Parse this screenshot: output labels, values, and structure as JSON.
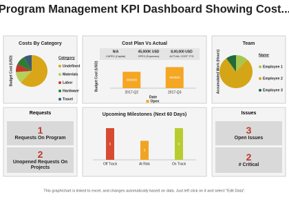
{
  "title": "Program Management KPI Dashboard Showing Cost...",
  "chart_data": [
    {
      "type": "pie",
      "title": "Costs By Category",
      "y_label": "Budget Cost (USD)",
      "legend_title": "Category",
      "categories": [
        "Undefined",
        "Materials",
        "Labor",
        "Hardware",
        "Travel"
      ],
      "values": [
        62,
        12,
        8,
        10,
        8
      ],
      "colors": [
        "#d9a61a",
        "#b5cf5a",
        "#c0392b",
        "#2e7d32",
        "#3b5a78"
      ]
    },
    {
      "type": "bar",
      "title": "Cost Plan Vs Actual",
      "table": [
        {
          "value": "N/A",
          "label": "CAPEX (Capital)"
        },
        {
          "value": "45,000K USD",
          "label": "OPEX (Expenses)"
        },
        {
          "value": "8,00,000 USD",
          "label": "ACTUAL COST YTD"
        }
      ],
      "y_label": "Budget Cost (USD)",
      "x_label": "Date",
      "categories": [
        "2017-Q2",
        "2017-Q3"
      ],
      "series": [
        {
          "name": "Opex",
          "color": "#f5a623",
          "values": [
            350000,
            450000
          ]
        }
      ],
      "ylim": [
        0,
        500000
      ]
    },
    {
      "type": "pie",
      "title": "Team",
      "y_label": "Accumulated Work (Hours)",
      "legend_title": "Name",
      "categories": [
        "Employee 1",
        "Employee 2",
        "Employee 3"
      ],
      "values": [
        12,
        78,
        10
      ],
      "colors": [
        "#a8c64e",
        "#d4a516",
        "#1f6b3a"
      ]
    },
    {
      "type": "bar",
      "title": "Upcoming Milestones (Next 60 Days)",
      "categories": [
        "Off Track",
        "At Risk",
        "On Track"
      ],
      "values": [
        5,
        3,
        5
      ],
      "colors": [
        "#d84a32",
        "#f0a422",
        "#b8cc2e"
      ],
      "ylim": [
        0,
        5
      ]
    }
  ],
  "requests": {
    "title": "Requests",
    "items": [
      {
        "count": 1,
        "label": "Requests On Program"
      },
      {
        "count": 2,
        "label": "Unopened Requests On Projects"
      }
    ]
  },
  "issues": {
    "title": "Issues",
    "items": [
      {
        "count": 3,
        "label": "Open Issues"
      },
      {
        "count": 2,
        "label": "# Critical"
      }
    ]
  },
  "footer": "This graph/chart is linked to excel, and changes automatically based on data. Just left click on it and select \"Edit Data\"."
}
